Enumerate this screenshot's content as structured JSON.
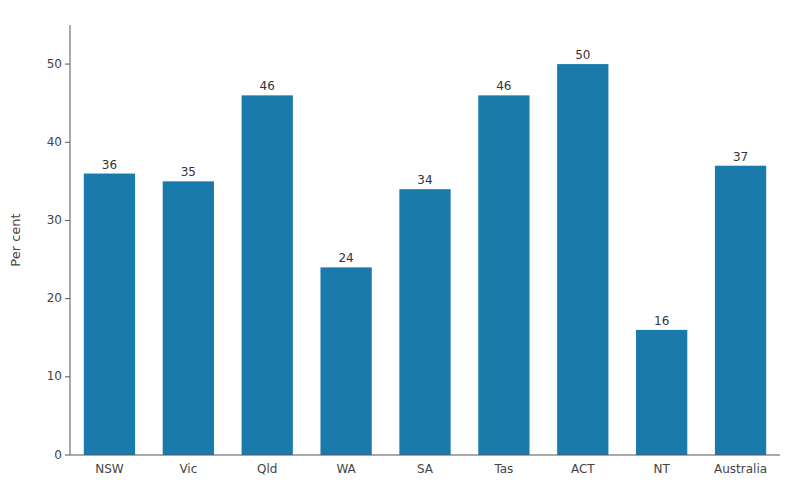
{
  "chart_data": {
    "type": "bar",
    "categories": [
      "NSW",
      "Vic",
      "Qld",
      "WA",
      "SA",
      "Tas",
      "ACT",
      "NT",
      "Australia"
    ],
    "values": [
      36,
      35,
      46,
      24,
      34,
      46,
      50,
      16,
      37
    ],
    "color": "#1a7aab",
    "ylabel": "Per cent",
    "ylim": [
      0,
      55
    ],
    "yticks": [
      0,
      10,
      20,
      30,
      40,
      50
    ],
    "grid": false,
    "data_labels": true
  }
}
